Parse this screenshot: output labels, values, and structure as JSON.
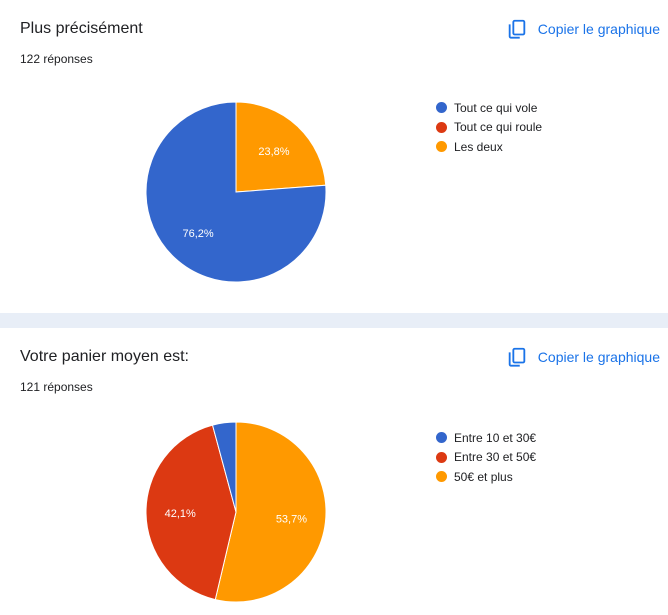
{
  "copy_label": "Copier le graphique",
  "chart_data": [
    {
      "type": "pie",
      "title": "Plus précisément",
      "subtitle": "122 réponses",
      "legend_position": "right",
      "categories": [
        "Tout ce qui vole",
        "Tout ce qui roule",
        "Les deux"
      ],
      "values": [
        76.2,
        0,
        23.8
      ],
      "labels": [
        "76,2%",
        "",
        "23,8%"
      ],
      "colors": [
        "#3366cc",
        "#dc3912",
        "#ff9900"
      ]
    },
    {
      "type": "pie",
      "title": "Votre panier moyen est:",
      "subtitle": "121 réponses",
      "legend_position": "right",
      "categories": [
        "Entre 10 et 30€",
        "Entre 30 et 50€",
        "50€ et plus"
      ],
      "values": [
        4.2,
        42.1,
        53.7
      ],
      "labels": [
        "",
        "42,1%",
        "53,7%"
      ],
      "colors": [
        "#3366cc",
        "#dc3912",
        "#ff9900"
      ]
    }
  ]
}
